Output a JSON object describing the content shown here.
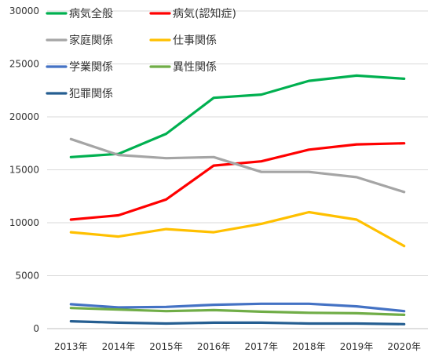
{
  "chart_data": {
    "type": "line",
    "categories": [
      "2013年",
      "2014年",
      "2015年",
      "2016年",
      "2017年",
      "2018年",
      "2019年",
      "2020年"
    ],
    "ylim": [
      0,
      30000
    ],
    "yticks": [
      0,
      5000,
      10000,
      15000,
      20000,
      25000,
      30000
    ],
    "grid": true,
    "legend_position": "top-left",
    "series": [
      {
        "name": "病気全般",
        "color": "#00b050",
        "values": [
          16200,
          16500,
          18400,
          21800,
          22100,
          23400,
          23900,
          23600
        ]
      },
      {
        "name": "病気(認知症)",
        "color": "#ff0000",
        "values": [
          10300,
          10700,
          12200,
          15400,
          15800,
          16900,
          17400,
          17500
        ]
      },
      {
        "name": "家庭関係",
        "color": "#a5a5a5",
        "values": [
          17900,
          16400,
          16100,
          16200,
          14800,
          14800,
          14300,
          12900
        ]
      },
      {
        "name": "仕事関係",
        "color": "#ffc000",
        "values": [
          9100,
          8700,
          9400,
          9100,
          9900,
          11000,
          10300,
          7800
        ]
      },
      {
        "name": "学業関係",
        "color": "#4472c4",
        "values": [
          2300,
          2000,
          2050,
          2250,
          2350,
          2350,
          2100,
          1650
        ]
      },
      {
        "name": "異性関係",
        "color": "#70ad47",
        "values": [
          1950,
          1800,
          1650,
          1750,
          1600,
          1500,
          1450,
          1300
        ]
      },
      {
        "name": "犯罪関係",
        "color": "#255e91",
        "values": [
          700,
          560,
          480,
          560,
          560,
          480,
          480,
          420
        ]
      }
    ]
  }
}
